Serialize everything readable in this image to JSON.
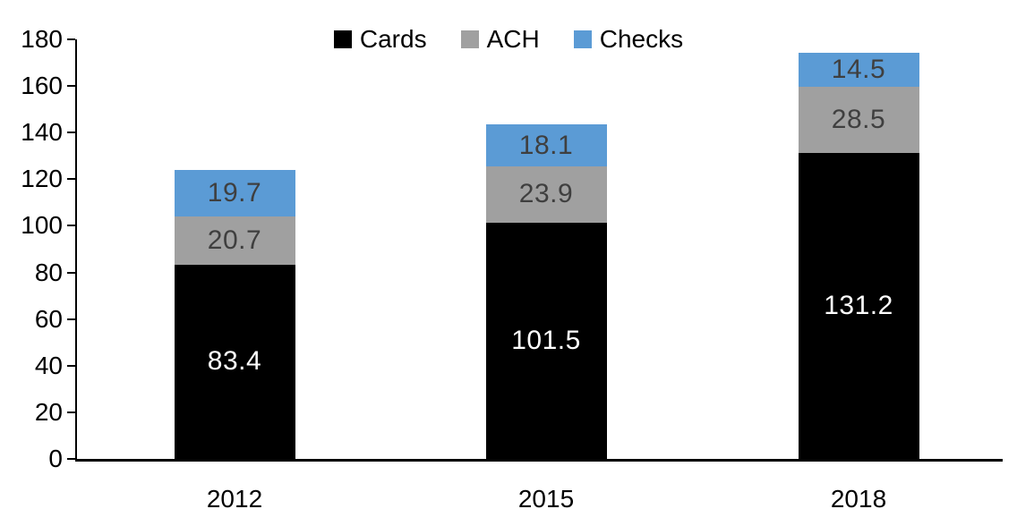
{
  "chart_data": {
    "type": "bar",
    "stacked": true,
    "title": "",
    "xlabel": "",
    "ylabel": "",
    "categories": [
      "2012",
      "2015",
      "2018"
    ],
    "series": [
      {
        "name": "Cards",
        "color": "#000000",
        "label_color": "#ffffff",
        "values": [
          83.4,
          101.5,
          131.2
        ]
      },
      {
        "name": "ACH",
        "color": "#a0a0a0",
        "label_color": "#3f3f3f",
        "values": [
          20.7,
          23.9,
          28.5
        ]
      },
      {
        "name": "Checks",
        "color": "#5b9bd5",
        "label_color": "#3f3f3f",
        "values": [
          19.7,
          18.1,
          14.5
        ]
      }
    ],
    "totals": [
      123.8,
      143.5,
      174.2
    ],
    "ylim": [
      0,
      180
    ],
    "ytick_step": 20,
    "yticks": [
      0,
      20,
      40,
      60,
      80,
      100,
      120,
      140,
      160,
      180
    ],
    "grid": false,
    "legend_position": "top-center",
    "legend_items": [
      "Cards",
      "ACH",
      "Checks"
    ],
    "value_label_decimals": 1,
    "axis_color": "#000000",
    "background_color": "#ffffff"
  }
}
